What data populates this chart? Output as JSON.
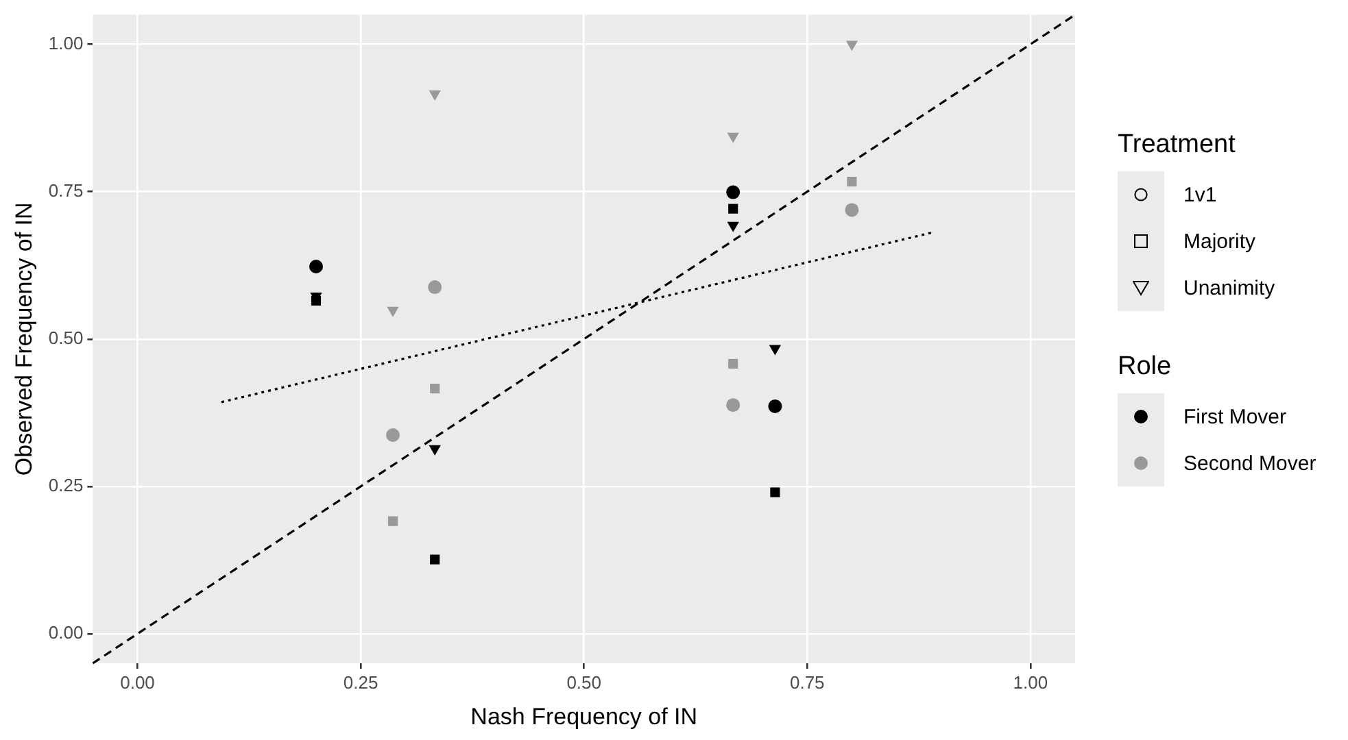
{
  "chart_data": {
    "type": "scatter",
    "xlabel": "Nash Frequency of IN",
    "ylabel": "Observed Frequency of IN",
    "xticks": [
      {
        "value": 0,
        "label": "0.00"
      },
      {
        "value": 0.25,
        "label": "0.25"
      },
      {
        "value": 0.5,
        "label": "0.50"
      },
      {
        "value": 0.75,
        "label": "0.75"
      },
      {
        "value": 1,
        "label": "1.00"
      }
    ],
    "yticks": [
      {
        "value": 0,
        "label": "0.00"
      },
      {
        "value": 0.25,
        "label": "0.25"
      },
      {
        "value": 0.5,
        "label": "0.50"
      },
      {
        "value": 0.75,
        "label": "0.75"
      },
      {
        "value": 1,
        "label": "1.00"
      }
    ],
    "xlim": [
      -0.05,
      1.05
    ],
    "ylim": [
      -0.05,
      1.05
    ],
    "grid": true,
    "legend": "right",
    "legend_title": [
      "Treatment",
      "Role"
    ],
    "series": [
      {
        "marker": "circle",
        "color": "#000000",
        "x": [
          0.2,
          0.667,
          0.714
        ],
        "values": [
          0.623,
          0.749,
          0.386
        ]
      },
      {
        "marker": "circle",
        "color": "#999999",
        "x": [
          0.286,
          0.333,
          0.667,
          0.8
        ],
        "values": [
          0.337,
          0.588,
          0.388,
          0.719
        ]
      },
      {
        "marker": "square",
        "color": "#000000",
        "x": [
          0.2,
          0.667,
          0.333,
          0.714
        ],
        "values": [
          0.565,
          0.721,
          0.126,
          0.24
        ]
      },
      {
        "marker": "square",
        "color": "#999999",
        "x": [
          0.286,
          0.333,
          0.667,
          0.8
        ],
        "values": [
          0.191,
          0.416,
          0.458,
          0.767
        ]
      },
      {
        "marker": "triangle",
        "color": "#000000",
        "x": [
          0.2,
          0.333,
          0.667,
          0.714
        ],
        "values": [
          0.573,
          0.314,
          0.693,
          0.484
        ]
      },
      {
        "marker": "triangle",
        "color": "#999999",
        "x": [
          0.286,
          0.333,
          0.667,
          0.8
        ],
        "values": [
          0.549,
          0.916,
          0.844,
          1.0
        ]
      },
      {
        "name": "1v1",
        "marker": "circle",
        "color": "#000000"
      },
      {
        "name": "Majority",
        "marker": "square",
        "color": "#000000"
      },
      {
        "name": "Unanimity",
        "marker": "triangle",
        "color": "#000000"
      },
      {
        "name": "First Mover",
        "marker": "circle",
        "color": "#000000"
      },
      {
        "name": "Second Mover",
        "marker": "circle",
        "color": "#999999"
      },
      {
        "type": "line",
        "line_style": "dashed",
        "marker": "none",
        "color": "#000000",
        "x": [
          -0.05,
          1.05
        ],
        "values": [
          -0.05,
          1.05
        ]
      },
      {
        "type": "line",
        "line_style": "dotted",
        "marker": "none",
        "color": "#000000",
        "x": [
          0.094,
          0.891
        ],
        "values": [
          0.393,
          0.681
        ]
      }
    ]
  }
}
